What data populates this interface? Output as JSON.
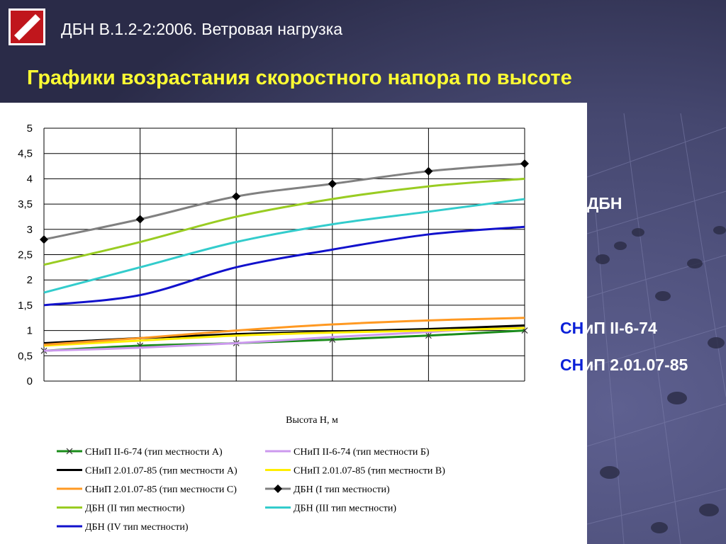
{
  "slide": {
    "header_title": "ДБН В.1.2-2:2006. Ветровая нагрузка",
    "subtitle": "Графики возрастания скоростного напора по высоте",
    "side_labels": {
      "dbn": "ДБН",
      "snip1_prefix": "СН",
      "snip1_suffix": "иП II-6-74",
      "snip2_prefix": "СН",
      "snip2_suffix": "иП 2.01.07-85"
    },
    "colors": {
      "subtitle": "#ffff33",
      "side_accent": "#0a1fd8",
      "logo": "#c0161c"
    },
    "logo_icon": "white-slash-on-red-square"
  },
  "chart_data": {
    "type": "line",
    "title": "",
    "xlabel": "Высота Н, м",
    "ylabel": "",
    "ylim": [
      0,
      5
    ],
    "yticks": [
      "0",
      "0,5",
      "1",
      "1,5",
      "2",
      "2,5",
      "3",
      "3,5",
      "4",
      "4,5",
      "5"
    ],
    "x_categories": 6,
    "grid": true,
    "legend_position": "bottom",
    "series": [
      {
        "name": "СНиП II-6-74 (тип местности А)",
        "color": "#1a8c1a",
        "marker": "x",
        "values": [
          0.6,
          0.7,
          0.75,
          0.82,
          0.9,
          1.0
        ]
      },
      {
        "name": "СНиП II-6-74 (тип местности Б)",
        "color": "#cc99ee",
        "marker": "none",
        "values": [
          0.6,
          0.66,
          0.75,
          0.87,
          0.97,
          1.1
        ]
      },
      {
        "name": "СНиП 2.01.07-85 (тип местности А)",
        "color": "#000000",
        "marker": "none",
        "values": [
          0.75,
          0.85,
          0.93,
          0.98,
          1.03,
          1.1
        ]
      },
      {
        "name": "СНиП 2.01.07-85 (тип  местности В)",
        "color": "#ffee00",
        "marker": "none",
        "values": [
          0.7,
          0.8,
          0.9,
          0.96,
          1.0,
          1.05
        ]
      },
      {
        "name": "СНиП 2.01.07-85 (тип местности С)",
        "color": "#ff9922",
        "marker": "none",
        "values": [
          0.72,
          0.85,
          1.0,
          1.12,
          1.2,
          1.25
        ]
      },
      {
        "name": "ДБН (I тип местности)",
        "color": "#808080",
        "marker": "diamond",
        "values": [
          2.8,
          3.2,
          3.65,
          3.9,
          4.15,
          4.3
        ]
      },
      {
        "name": "ДБН (II тип  местности)",
        "color": "#99cc22",
        "marker": "none",
        "values": [
          2.3,
          2.75,
          3.25,
          3.6,
          3.85,
          4.0
        ]
      },
      {
        "name": "ДБН (III тип  местности)",
        "color": "#33cccc",
        "marker": "none",
        "values": [
          1.75,
          2.25,
          2.75,
          3.1,
          3.35,
          3.6
        ]
      },
      {
        "name": "ДБН (IV тип  местности)",
        "color": "#1111cc",
        "marker": "none",
        "values": [
          1.5,
          1.7,
          2.25,
          2.6,
          2.9,
          3.05
        ]
      }
    ]
  }
}
